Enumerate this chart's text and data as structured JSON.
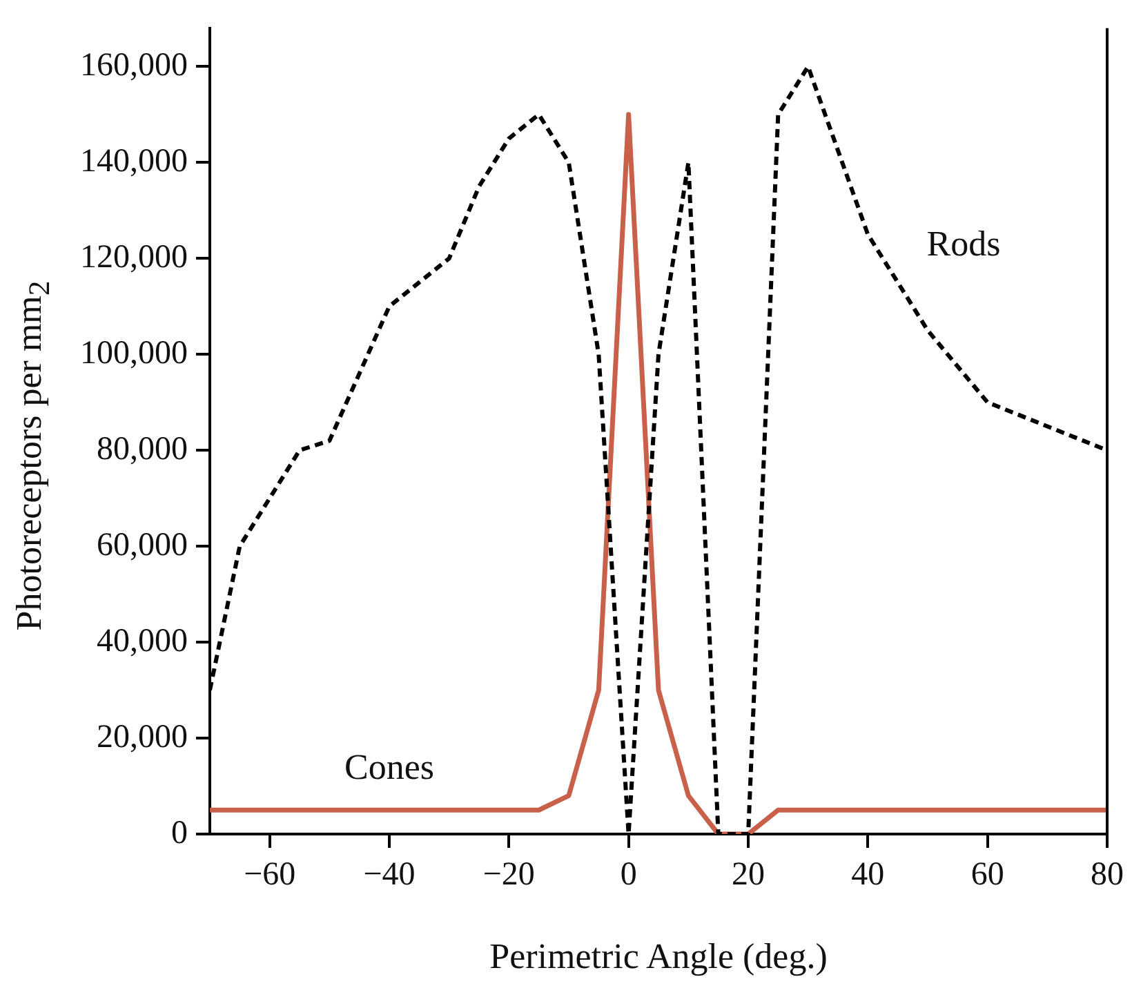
{
  "chart_data": {
    "type": "line",
    "xlabel": "Perimetric Angle (deg.)",
    "ylabel": "Photoreceptors per mm$_{2}$",
    "xlim": [
      -70,
      80
    ],
    "xticks": [
      -60,
      -40,
      -20,
      0,
      20,
      40,
      60,
      80
    ],
    "ylim": [
      0,
      168000
    ],
    "yticks": [
      0,
      {
        "value": 20000,
        "label": "20,000"
      },
      {
        "value": 40000,
        "label": "40,000"
      },
      {
        "value": 60000,
        "label": "60,000"
      },
      {
        "value": 80000,
        "label": "80,000"
      },
      {
        "value": 100000,
        "label": "100,000"
      },
      {
        "value": 120000,
        "label": "120,000"
      },
      {
        "value": 140000,
        "label": "140,000"
      },
      {
        "value": 160000,
        "label": "160,000"
      }
    ],
    "grid": false,
    "legend": false,
    "marker": "none",
    "series": [
      {
        "name": "Rods",
        "color": "#000000",
        "line_style": "dashed",
        "x": [
          -70,
          -65,
          -55,
          -50,
          -40,
          -30,
          -25,
          -20,
          -15,
          -10,
          -5,
          0,
          5,
          10,
          15,
          20,
          25,
          30,
          40,
          50,
          60,
          70,
          80
        ],
        "values": [
          30000,
          60000,
          80000,
          82000,
          110000,
          120000,
          135000,
          145000,
          150000,
          140000,
          100000,
          0,
          100000,
          140000,
          0,
          0,
          150000,
          160000,
          125000,
          105000,
          90000,
          85000,
          80000
        ]
      },
      {
        "name": "Cones",
        "color": "#c8604a",
        "line_style": "solid",
        "x": [
          -70,
          -15,
          -10,
          -5,
          0,
          5,
          10,
          15,
          20,
          25,
          80
        ],
        "values": [
          5000,
          5000,
          8000,
          30000,
          150000,
          30000,
          8000,
          0,
          0,
          5000,
          5000
        ]
      }
    ]
  }
}
